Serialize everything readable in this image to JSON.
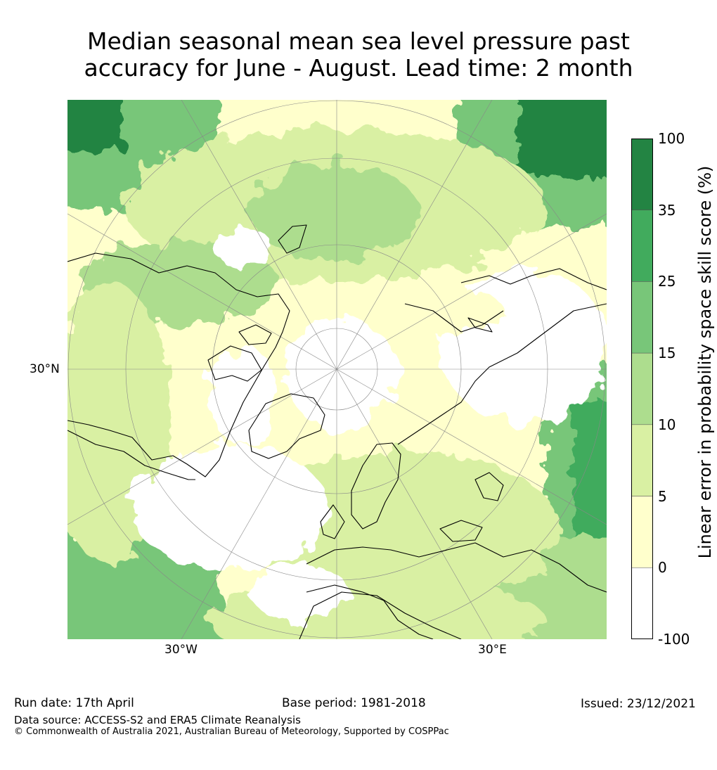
{
  "title": {
    "line1": "Median seasonal mean sea level pressure past",
    "line2": "accuracy for June - August. Lead time: 2 month"
  },
  "map": {
    "labels": {
      "lat30n": "30°N",
      "lon30w": "30°W",
      "lon30e": "30°E"
    },
    "background_color": "#ffffff",
    "coastline_color": "#000000",
    "grid_color": "#888888"
  },
  "colorbar": {
    "label": "Linear error in probability space skill score (%)",
    "ticks": [
      "100",
      "35",
      "25",
      "15",
      "10",
      "5",
      "0",
      "-100"
    ],
    "bins": [
      {
        "from": 35,
        "to": 100,
        "color": "#238443"
      },
      {
        "from": 25,
        "to": 35,
        "color": "#41ab5d"
      },
      {
        "from": 15,
        "to": 25,
        "color": "#78c679"
      },
      {
        "from": 10,
        "to": 15,
        "color": "#addd8e"
      },
      {
        "from": 5,
        "to": 10,
        "color": "#d9f0a3"
      },
      {
        "from": 0,
        "to": 5,
        "color": "#ffffcc"
      },
      {
        "from": -100,
        "to": 0,
        "color": "#ffffff"
      }
    ]
  },
  "footer": {
    "run_date": "Run date: 17th April",
    "base_period": "Base period: 1981-2018",
    "issued": "Issued: 23/12/2021",
    "data_source": "Data source: ACCESS-S2 and ERA5 Climate Reanalysis",
    "copyright": "© Commonwealth of Australia 2021, Australian Bureau of Meteorology, Supported by COSPPac"
  }
}
